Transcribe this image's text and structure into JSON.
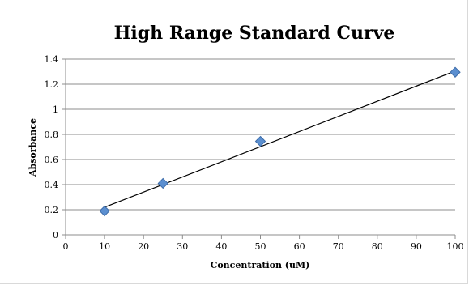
{
  "chart_data": {
    "type": "scatter",
    "title": "High Range Standard Curve",
    "xlabel": "Concentration (uM)",
    "ylabel": "Absorbance",
    "xlim": [
      0,
      100
    ],
    "ylim": [
      0,
      1.4
    ],
    "xticks": [
      0,
      10,
      20,
      30,
      40,
      50,
      60,
      70,
      80,
      90,
      100
    ],
    "yticks": [
      0,
      0.2,
      0.4,
      0.6,
      0.8,
      1,
      1.2,
      1.4
    ],
    "grid": "horizontal",
    "legend": "none",
    "series": [
      {
        "x": [
          10,
          25,
          50,
          100
        ],
        "y": [
          0.19,
          0.41,
          0.745,
          1.295
        ],
        "marker": "diamond",
        "color": "#5b8fd0"
      }
    ],
    "trendline": {
      "type": "linear",
      "from": [
        10,
        0.22
      ],
      "to": [
        100,
        1.305
      ],
      "color": "#000000"
    }
  }
}
